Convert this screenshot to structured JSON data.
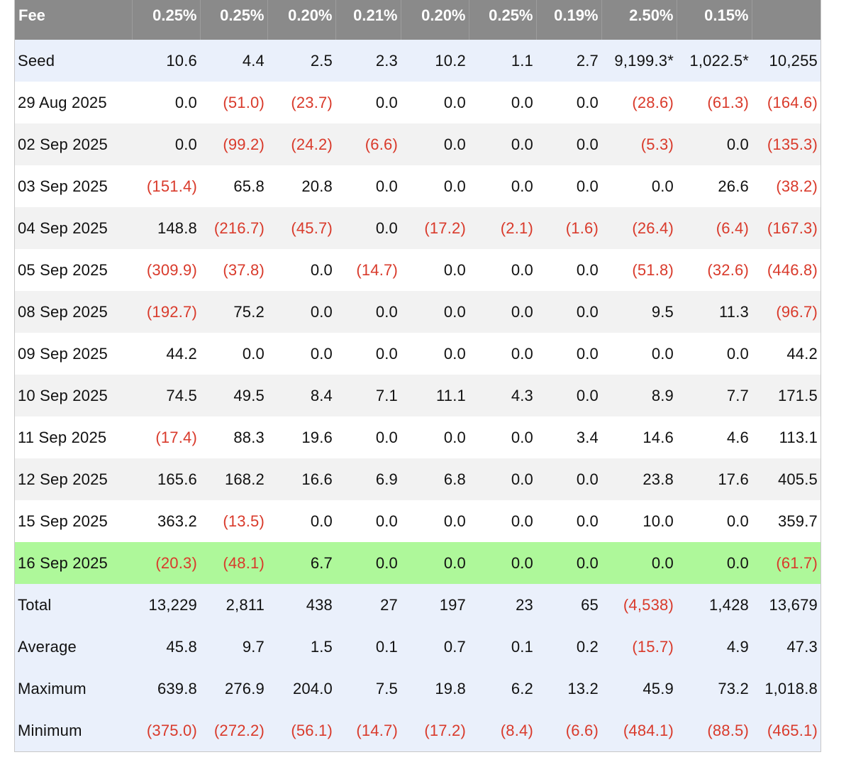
{
  "table": {
    "header": [
      "Fee",
      "0.25%",
      "0.25%",
      "0.20%",
      "0.21%",
      "0.20%",
      "0.25%",
      "0.19%",
      "2.50%",
      "0.15%",
      ""
    ],
    "rows": [
      {
        "kind": "seed",
        "cells": [
          "Seed",
          "10.6",
          "4.4",
          "2.5",
          "2.3",
          "10.2",
          "1.1",
          "2.7",
          "9,199.3*",
          "1,022.5*",
          "10,255"
        ]
      },
      {
        "kind": "day",
        "cells": [
          "29 Aug 2025",
          "0.0",
          "(51.0)",
          "(23.7)",
          "0.0",
          "0.0",
          "0.0",
          "0.0",
          "(28.6)",
          "(61.3)",
          "(164.6)"
        ]
      },
      {
        "kind": "day",
        "cells": [
          "02 Sep 2025",
          "0.0",
          "(99.2)",
          "(24.2)",
          "(6.6)",
          "0.0",
          "0.0",
          "0.0",
          "(5.3)",
          "0.0",
          "(135.3)"
        ]
      },
      {
        "kind": "day",
        "cells": [
          "03 Sep 2025",
          "(151.4)",
          "65.8",
          "20.8",
          "0.0",
          "0.0",
          "0.0",
          "0.0",
          "0.0",
          "26.6",
          "(38.2)"
        ]
      },
      {
        "kind": "day",
        "cells": [
          "04 Sep 2025",
          "148.8",
          "(216.7)",
          "(45.7)",
          "0.0",
          "(17.2)",
          "(2.1)",
          "(1.6)",
          "(26.4)",
          "(6.4)",
          "(167.3)"
        ]
      },
      {
        "kind": "day",
        "cells": [
          "05 Sep 2025",
          "(309.9)",
          "(37.8)",
          "0.0",
          "(14.7)",
          "0.0",
          "0.0",
          "0.0",
          "(51.8)",
          "(32.6)",
          "(446.8)"
        ]
      },
      {
        "kind": "day",
        "cells": [
          "08 Sep 2025",
          "(192.7)",
          "75.2",
          "0.0",
          "0.0",
          "0.0",
          "0.0",
          "0.0",
          "9.5",
          "11.3",
          "(96.7)"
        ]
      },
      {
        "kind": "day",
        "cells": [
          "09 Sep 2025",
          "44.2",
          "0.0",
          "0.0",
          "0.0",
          "0.0",
          "0.0",
          "0.0",
          "0.0",
          "0.0",
          "44.2"
        ]
      },
      {
        "kind": "day",
        "cells": [
          "10 Sep 2025",
          "74.5",
          "49.5",
          "8.4",
          "7.1",
          "11.1",
          "4.3",
          "0.0",
          "8.9",
          "7.7",
          "171.5"
        ]
      },
      {
        "kind": "day",
        "cells": [
          "11 Sep 2025",
          "(17.4)",
          "88.3",
          "19.6",
          "0.0",
          "0.0",
          "0.0",
          "3.4",
          "14.6",
          "4.6",
          "113.1"
        ]
      },
      {
        "kind": "day",
        "cells": [
          "12 Sep 2025",
          "165.6",
          "168.2",
          "16.6",
          "6.9",
          "6.8",
          "0.0",
          "0.0",
          "23.8",
          "17.6",
          "405.5"
        ]
      },
      {
        "kind": "day",
        "cells": [
          "15 Sep 2025",
          "363.2",
          "(13.5)",
          "0.0",
          "0.0",
          "0.0",
          "0.0",
          "0.0",
          "10.0",
          "0.0",
          "359.7"
        ]
      },
      {
        "kind": "highlight",
        "cells": [
          "16 Sep 2025",
          "(20.3)",
          "(48.1)",
          "6.7",
          "0.0",
          "0.0",
          "0.0",
          "0.0",
          "0.0",
          "0.0",
          "(61.7)"
        ]
      },
      {
        "kind": "summary",
        "cells": [
          "Total",
          "13,229",
          "2,811",
          "438",
          "27",
          "197",
          "23",
          "65",
          "(4,538)",
          "1,428",
          "13,679"
        ]
      },
      {
        "kind": "summary",
        "cells": [
          "Average",
          "45.8",
          "9.7",
          "1.5",
          "0.1",
          "0.7",
          "0.1",
          "0.2",
          "(15.7)",
          "4.9",
          "47.3"
        ]
      },
      {
        "kind": "summary",
        "cells": [
          "Maximum",
          "639.8",
          "276.9",
          "204.0",
          "7.5",
          "19.8",
          "6.2",
          "13.2",
          "45.9",
          "73.2",
          "1,018.8"
        ]
      },
      {
        "kind": "summary",
        "cells": [
          "Minimum",
          "(375.0)",
          "(272.2)",
          "(56.1)",
          "(14.7)",
          "(17.2)",
          "(8.4)",
          "(6.6)",
          "(484.1)",
          "(88.5)",
          "(465.1)"
        ]
      }
    ]
  },
  "colors": {
    "header_bg": "#8a8a8a",
    "negative_text": "#d93a2b",
    "highlight_row_bg": "#aef89a",
    "summary_row_bg": "#eaf0fb",
    "striped_row_bg": "#f2f2f2"
  }
}
